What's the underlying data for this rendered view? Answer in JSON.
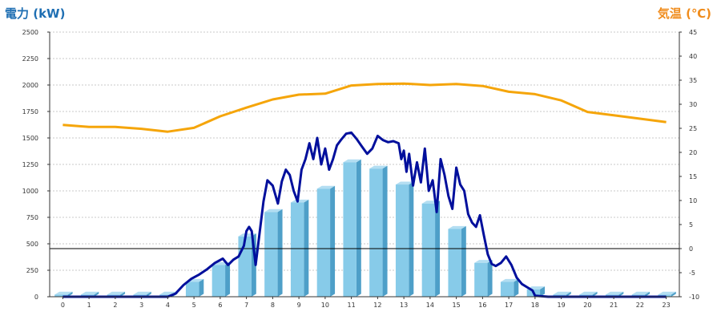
{
  "chart_data": {
    "type": "bar",
    "ylabel_left": "電力 (kW)",
    "ylabel_right": "気温 (℃)",
    "categories": [
      "0",
      "1",
      "2",
      "3",
      "4",
      "5",
      "6",
      "7",
      "8",
      "9",
      "10",
      "11",
      "12",
      "13",
      "14",
      "15",
      "16",
      "17",
      "18",
      "19",
      "20",
      "21",
      "22",
      "23"
    ],
    "y_left_ticks": [
      "0",
      "250",
      "500",
      "750",
      "1000",
      "1250",
      "1500",
      "1750",
      "2000",
      "2250",
      "2500"
    ],
    "y_right_ticks": [
      "-10",
      "-5",
      "0",
      "5",
      "10",
      "15",
      "20",
      "25",
      "30",
      "35",
      "40",
      "45"
    ],
    "ylim_left": [
      0,
      2500
    ],
    "ylim_right": [
      -10,
      45
    ],
    "grid": true,
    "series": [
      {
        "kind": "bar",
        "axis": "left",
        "values": [
          20,
          20,
          20,
          20,
          20,
          140,
          300,
          570,
          800,
          890,
          1020,
          1270,
          1210,
          1060,
          880,
          640,
          320,
          140,
          70,
          20,
          20,
          20,
          20,
          20
        ]
      },
      {
        "kind": "line",
        "axis": "left",
        "color": "#000f9c",
        "x": [
          0,
          0.5,
          1,
          1.5,
          2,
          2.5,
          3,
          3.5,
          4,
          4.3,
          4.6,
          4.9,
          5.2,
          5.5,
          5.8,
          6.1,
          6.3,
          6.5,
          6.7,
          6.9,
          7.0,
          7.1,
          7.2,
          7.35,
          7.5,
          7.65,
          7.8,
          8.0,
          8.2,
          8.35,
          8.5,
          8.65,
          8.8,
          8.95,
          9.1,
          9.25,
          9.4,
          9.55,
          9.7,
          9.85,
          10.0,
          10.15,
          10.3,
          10.45,
          10.6,
          10.8,
          11.0,
          11.2,
          11.4,
          11.6,
          11.8,
          12.0,
          12.2,
          12.4,
          12.6,
          12.8,
          12.9,
          13.0,
          13.1,
          13.2,
          13.35,
          13.5,
          13.65,
          13.8,
          13.95,
          14.1,
          14.25,
          14.4,
          14.55,
          14.7,
          14.85,
          15.0,
          15.15,
          15.3,
          15.45,
          15.6,
          15.75,
          15.9,
          16.05,
          16.2,
          16.35,
          16.5,
          16.7,
          16.9,
          17.1,
          17.3,
          17.5,
          17.7,
          17.9,
          18.0,
          18.5,
          19,
          20,
          21,
          22,
          23
        ],
        "values": [
          0,
          0,
          0,
          0,
          0,
          0,
          0,
          0,
          0,
          30,
          110,
          170,
          210,
          260,
          320,
          360,
          300,
          350,
          380,
          480,
          620,
          660,
          620,
          300,
          600,
          900,
          1100,
          1050,
          880,
          1090,
          1200,
          1150,
          1000,
          900,
          1200,
          1300,
          1450,
          1300,
          1500,
          1250,
          1400,
          1200,
          1300,
          1430,
          1480,
          1540,
          1550,
          1490,
          1420,
          1350,
          1400,
          1520,
          1480,
          1460,
          1470,
          1450,
          1300,
          1380,
          1180,
          1350,
          1050,
          1270,
          1080,
          1400,
          1000,
          1100,
          800,
          1300,
          1150,
          950,
          830,
          1220,
          1060,
          1000,
          780,
          700,
          660,
          770,
          580,
          400,
          310,
          290,
          320,
          380,
          300,
          180,
          120,
          90,
          60,
          10,
          0,
          0,
          0,
          0,
          0,
          0
        ]
      },
      {
        "kind": "line",
        "axis": "right",
        "color": "#f5a50a",
        "x": [
          0,
          1,
          2,
          3,
          4,
          5,
          6,
          7,
          8,
          9,
          10,
          11,
          12,
          13,
          14,
          15,
          16,
          17,
          18,
          19,
          20,
          21,
          22,
          23
        ],
        "values": [
          25.7,
          25.3,
          25.3,
          24.9,
          24.3,
          25.1,
          27.5,
          29.3,
          31.0,
          32.0,
          32.2,
          33.9,
          34.2,
          34.3,
          34.0,
          34.2,
          33.8,
          32.6,
          32.1,
          30.8,
          28.4,
          27.7,
          27.0,
          26.3
        ]
      }
    ],
    "reference_line": {
      "axis": "right",
      "value": 0
    }
  }
}
